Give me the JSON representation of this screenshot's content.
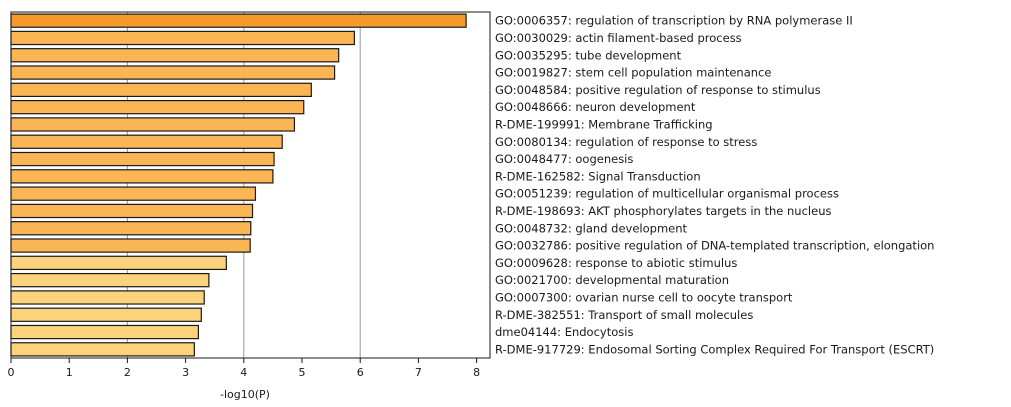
{
  "chart_data": {
    "type": "bar",
    "orientation": "horizontal",
    "xlabel": "-log10(P)",
    "ylabel": "",
    "title": "",
    "xlim": [
      0,
      8.3
    ],
    "xticks": [
      0,
      1,
      2,
      3,
      4,
      5,
      6,
      7,
      8
    ],
    "grid_x_at": [
      2,
      4,
      6
    ],
    "categories": [
      "GO:0006357: regulation of transcription by RNA polymerase II",
      "GO:0030029: actin filament-based process",
      "GO:0035295: tube development",
      "GO:0019827: stem cell population maintenance",
      "GO:0048584: positive regulation of response to stimulus",
      "GO:0048666: neuron development",
      "R-DME-199991: Membrane Trafficking",
      "GO:0080134: regulation of response to stress",
      "GO:0048477: oogenesis",
      "R-DME-162582: Signal Transduction",
      "GO:0051239: regulation of multicellular organismal process",
      "R-DME-198693: AKT phosphorylates targets in the nucleus",
      "GO:0048732: gland development",
      "GO:0032786: positive regulation of DNA-templated transcription, elongation",
      "GO:0009628: response to abiotic stimulus",
      "GO:0021700: developmental maturation",
      "GO:0007300: ovarian nurse cell to oocyte transport",
      "R-DME-382551: Transport of small molecules",
      "dme04144: Endocytosis",
      "R-DME-917729: Endosomal Sorting Complex Required For Transport (ESCRT)"
    ],
    "values": [
      7.82,
      5.9,
      5.63,
      5.56,
      5.16,
      5.03,
      4.87,
      4.66,
      4.52,
      4.5,
      4.2,
      4.15,
      4.12,
      4.11,
      3.7,
      3.4,
      3.32,
      3.27,
      3.22,
      3.15
    ],
    "colors": [
      "#f79a2c",
      "#fab555",
      "#fab555",
      "#fab555",
      "#fab555",
      "#fab555",
      "#fab555",
      "#fab555",
      "#fab555",
      "#fab555",
      "#fab555",
      "#fab555",
      "#fab555",
      "#fab555",
      "#fcd27c",
      "#fcd27c",
      "#fcd27c",
      "#fcd27c",
      "#fcd27c",
      "#fcd27c"
    ]
  }
}
